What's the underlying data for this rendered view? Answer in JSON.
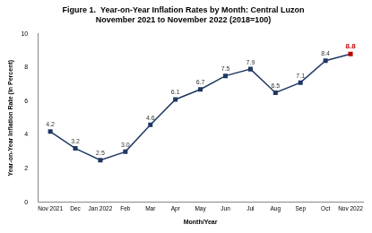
{
  "chart_data": {
    "type": "line",
    "title": [
      "Figure 1.  Year-on-Year Inflation Rates by Month: Central Luzon",
      "November 2021 to November 2022 (2018=100)"
    ],
    "x_label": "Month/Year",
    "y_label": "Year-on-Year Inflation Rate (In Percent)",
    "categories": [
      "Nov 2021",
      "Dec",
      "Jan 2022",
      "Feb",
      "Mar",
      "Apr",
      "May",
      "Jun",
      "Jul",
      "Aug",
      "Sep",
      "Oct",
      "Nov 2022"
    ],
    "values": [
      4.2,
      3.2,
      2.5,
      3.0,
      4.6,
      6.1,
      6.7,
      7.5,
      7.9,
      6.5,
      7.1,
      8.4,
      8.8
    ],
    "value_labels": [
      "4.2",
      "3.2",
      "2.5",
      "3.0",
      "4.6",
      "6.1",
      "6.7",
      "7.5",
      "7.9",
      "6.5",
      "7.1",
      "8.4",
      "8.8"
    ],
    "data_labels": true,
    "color": "#1f3864",
    "colors": [
      "#1f3864",
      "#1f3864",
      "#1f3864",
      "#1f3864",
      "#1f3864",
      "#1f3864",
      "#1f3864",
      "#1f3864",
      "#1f3864",
      "#1f3864",
      "#1f3864",
      "#1f3864",
      "#c00000"
    ],
    "marker": "square",
    "ylim": [
      0,
      10
    ],
    "yticks": [
      0,
      2,
      4,
      6,
      8,
      10
    ],
    "grid": false
  }
}
